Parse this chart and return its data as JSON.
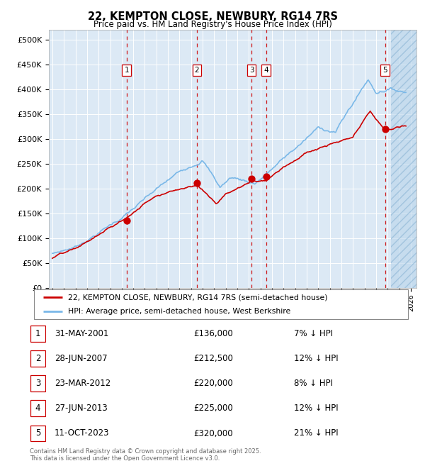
{
  "title_line1": "22, KEMPTON CLOSE, NEWBURY, RG14 7RS",
  "title_line2": "Price paid vs. HM Land Registry's House Price Index (HPI)",
  "yticks": [
    0,
    50000,
    100000,
    150000,
    200000,
    250000,
    300000,
    350000,
    400000,
    450000,
    500000
  ],
  "ytick_labels": [
    "£0",
    "£50K",
    "£100K",
    "£150K",
    "£200K",
    "£250K",
    "£300K",
    "£350K",
    "£400K",
    "£450K",
    "£500K"
  ],
  "ylim": [
    0,
    520000
  ],
  "xlim_start": 1994.7,
  "xlim_end": 2026.5,
  "background_color": "#ffffff",
  "plot_bg_color": "#dce9f5",
  "hpi_color": "#7ab8e8",
  "price_color": "#cc0000",
  "dashed_line_color": "#cc0000",
  "legend_label_red": "22, KEMPTON CLOSE, NEWBURY, RG14 7RS (semi-detached house)",
  "legend_label_blue": "HPI: Average price, semi-detached house, West Berkshire",
  "transactions": [
    {
      "id": 1,
      "date_x": 2001.42,
      "price": 136000,
      "date_str": "31-MAY-2001"
    },
    {
      "id": 2,
      "date_x": 2007.49,
      "price": 212500,
      "date_str": "28-JUN-2007"
    },
    {
      "id": 3,
      "date_x": 2012.23,
      "price": 220000,
      "date_str": "23-MAR-2012"
    },
    {
      "id": 4,
      "date_x": 2013.49,
      "price": 225000,
      "date_str": "27-JUN-2013"
    },
    {
      "id": 5,
      "date_x": 2023.78,
      "price": 320000,
      "date_str": "11-OCT-2023"
    }
  ],
  "footer_text": "Contains HM Land Registry data © Crown copyright and database right 2025.\nThis data is licensed under the Open Government Licence v3.0.",
  "table_rows": [
    {
      "id": 1,
      "date_str": "31-MAY-2001",
      "price_str": "£136,000",
      "pct_str": "7% ↓ HPI"
    },
    {
      "id": 2,
      "date_str": "28-JUN-2007",
      "price_str": "£212,500",
      "pct_str": "12% ↓ HPI"
    },
    {
      "id": 3,
      "date_str": "23-MAR-2012",
      "price_str": "£220,000",
      "pct_str": "8% ↓ HPI"
    },
    {
      "id": 4,
      "date_str": "27-JUN-2013",
      "price_str": "£225,000",
      "pct_str": "12% ↓ HPI"
    },
    {
      "id": 5,
      "date_str": "11-OCT-2023",
      "price_str": "£320,000",
      "pct_str": "21% ↓ HPI"
    }
  ],
  "hatch_start": 2024.3
}
